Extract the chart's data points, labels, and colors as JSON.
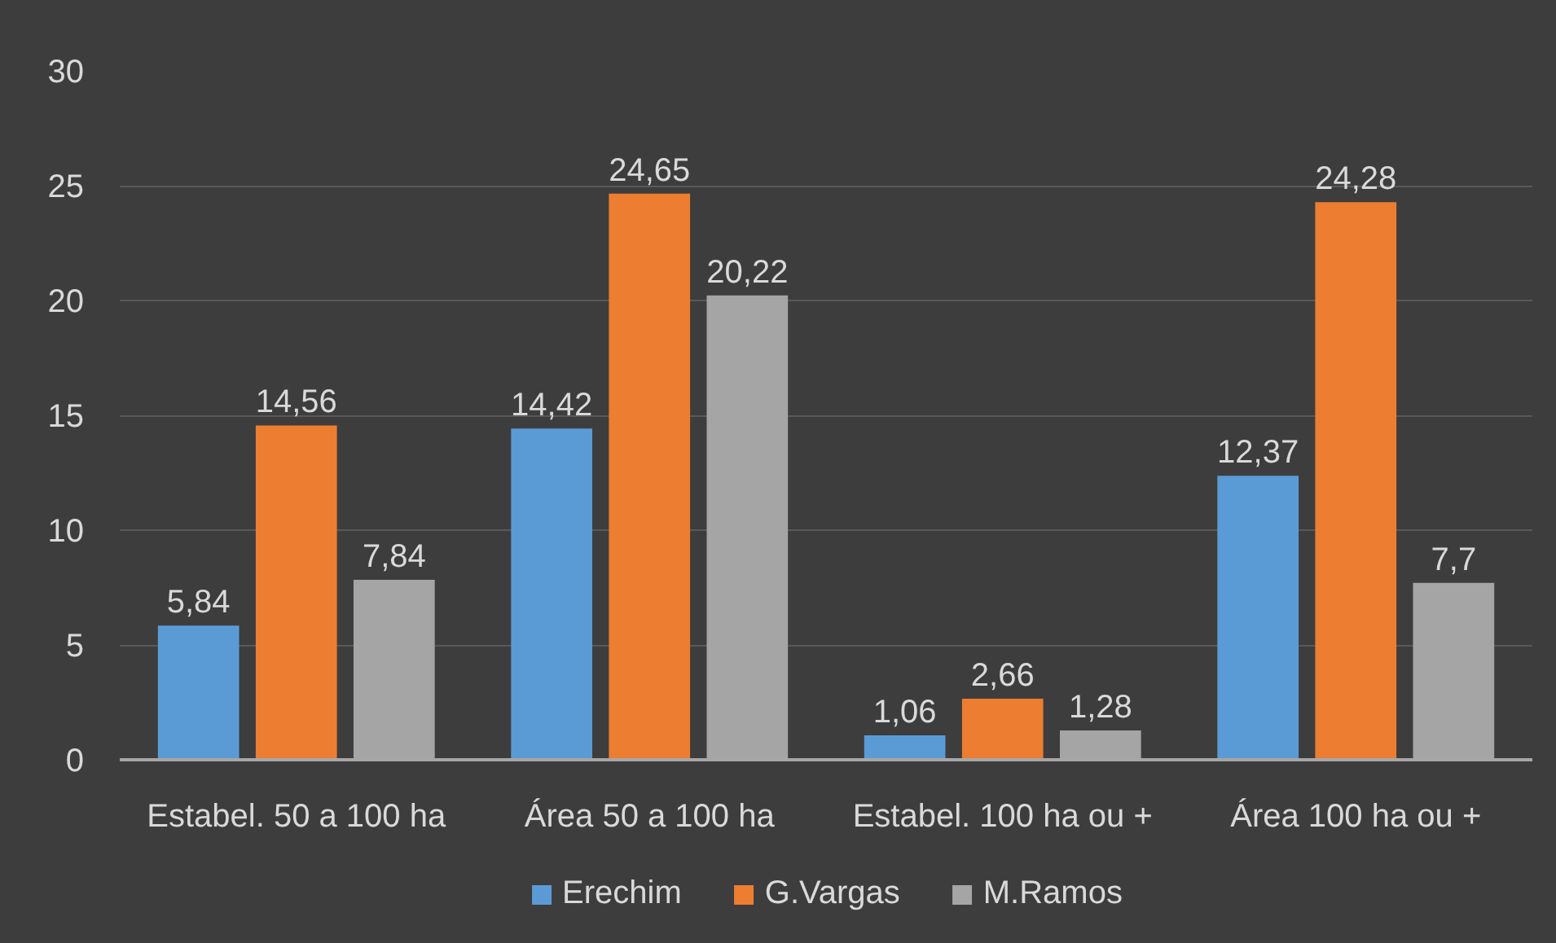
{
  "chart_data": {
    "type": "bar",
    "categories": [
      "Estabel. 50 a 100 ha",
      "Área 50 a 100 ha",
      "Estabel. 100 ha ou +",
      "Área 100 ha ou +"
    ],
    "series": [
      {
        "name": "Erechim",
        "color": "#5b9bd5",
        "values": [
          5.84,
          14.42,
          1.06,
          12.37
        ],
        "value_labels": [
          "5,84",
          "14,42",
          "1,06",
          "12,37"
        ]
      },
      {
        "name": "G.Vargas",
        "color": "#ed7d31",
        "values": [
          14.56,
          24.65,
          2.66,
          24.28
        ],
        "value_labels": [
          "14,56",
          "24,65",
          "2,66",
          "24,28"
        ]
      },
      {
        "name": "M.Ramos",
        "color": "#a5a5a5",
        "values": [
          7.84,
          20.22,
          1.28,
          7.7
        ],
        "value_labels": [
          "7,84",
          "20,22",
          "1,28",
          "7,7"
        ]
      }
    ],
    "ylim": [
      0,
      30
    ],
    "yticks": [
      0,
      5,
      10,
      15,
      20,
      25,
      30
    ],
    "grid": "y",
    "legend": "bottom"
  }
}
